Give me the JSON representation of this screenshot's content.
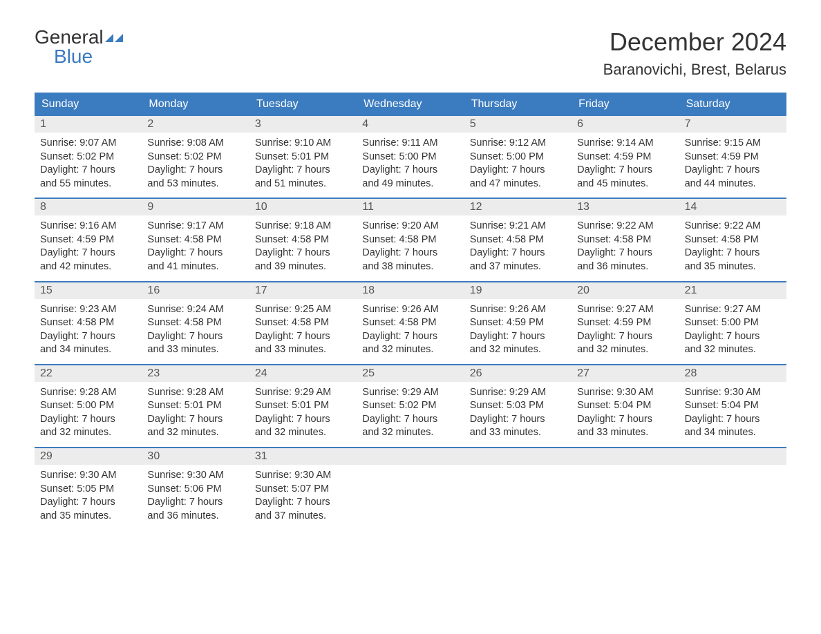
{
  "logo": {
    "text_general": "General",
    "text_blue": "Blue",
    "icon_color": "#3b7bbf"
  },
  "title": "December 2024",
  "location": "Baranovichi, Brest, Belarus",
  "colors": {
    "header_bg": "#3b7bbf",
    "header_text": "#ffffff",
    "date_bar_bg": "#ececec",
    "body_text": "#333333",
    "separator": "#3b7bbf"
  },
  "day_headers": [
    "Sunday",
    "Monday",
    "Tuesday",
    "Wednesday",
    "Thursday",
    "Friday",
    "Saturday"
  ],
  "weeks": [
    [
      {
        "date": "1",
        "sunrise": "Sunrise: 9:07 AM",
        "sunset": "Sunset: 5:02 PM",
        "daylight1": "Daylight: 7 hours",
        "daylight2": "and 55 minutes."
      },
      {
        "date": "2",
        "sunrise": "Sunrise: 9:08 AM",
        "sunset": "Sunset: 5:02 PM",
        "daylight1": "Daylight: 7 hours",
        "daylight2": "and 53 minutes."
      },
      {
        "date": "3",
        "sunrise": "Sunrise: 9:10 AM",
        "sunset": "Sunset: 5:01 PM",
        "daylight1": "Daylight: 7 hours",
        "daylight2": "and 51 minutes."
      },
      {
        "date": "4",
        "sunrise": "Sunrise: 9:11 AM",
        "sunset": "Sunset: 5:00 PM",
        "daylight1": "Daylight: 7 hours",
        "daylight2": "and 49 minutes."
      },
      {
        "date": "5",
        "sunrise": "Sunrise: 9:12 AM",
        "sunset": "Sunset: 5:00 PM",
        "daylight1": "Daylight: 7 hours",
        "daylight2": "and 47 minutes."
      },
      {
        "date": "6",
        "sunrise": "Sunrise: 9:14 AM",
        "sunset": "Sunset: 4:59 PM",
        "daylight1": "Daylight: 7 hours",
        "daylight2": "and 45 minutes."
      },
      {
        "date": "7",
        "sunrise": "Sunrise: 9:15 AM",
        "sunset": "Sunset: 4:59 PM",
        "daylight1": "Daylight: 7 hours",
        "daylight2": "and 44 minutes."
      }
    ],
    [
      {
        "date": "8",
        "sunrise": "Sunrise: 9:16 AM",
        "sunset": "Sunset: 4:59 PM",
        "daylight1": "Daylight: 7 hours",
        "daylight2": "and 42 minutes."
      },
      {
        "date": "9",
        "sunrise": "Sunrise: 9:17 AM",
        "sunset": "Sunset: 4:58 PM",
        "daylight1": "Daylight: 7 hours",
        "daylight2": "and 41 minutes."
      },
      {
        "date": "10",
        "sunrise": "Sunrise: 9:18 AM",
        "sunset": "Sunset: 4:58 PM",
        "daylight1": "Daylight: 7 hours",
        "daylight2": "and 39 minutes."
      },
      {
        "date": "11",
        "sunrise": "Sunrise: 9:20 AM",
        "sunset": "Sunset: 4:58 PM",
        "daylight1": "Daylight: 7 hours",
        "daylight2": "and 38 minutes."
      },
      {
        "date": "12",
        "sunrise": "Sunrise: 9:21 AM",
        "sunset": "Sunset: 4:58 PM",
        "daylight1": "Daylight: 7 hours",
        "daylight2": "and 37 minutes."
      },
      {
        "date": "13",
        "sunrise": "Sunrise: 9:22 AM",
        "sunset": "Sunset: 4:58 PM",
        "daylight1": "Daylight: 7 hours",
        "daylight2": "and 36 minutes."
      },
      {
        "date": "14",
        "sunrise": "Sunrise: 9:22 AM",
        "sunset": "Sunset: 4:58 PM",
        "daylight1": "Daylight: 7 hours",
        "daylight2": "and 35 minutes."
      }
    ],
    [
      {
        "date": "15",
        "sunrise": "Sunrise: 9:23 AM",
        "sunset": "Sunset: 4:58 PM",
        "daylight1": "Daylight: 7 hours",
        "daylight2": "and 34 minutes."
      },
      {
        "date": "16",
        "sunrise": "Sunrise: 9:24 AM",
        "sunset": "Sunset: 4:58 PM",
        "daylight1": "Daylight: 7 hours",
        "daylight2": "and 33 minutes."
      },
      {
        "date": "17",
        "sunrise": "Sunrise: 9:25 AM",
        "sunset": "Sunset: 4:58 PM",
        "daylight1": "Daylight: 7 hours",
        "daylight2": "and 33 minutes."
      },
      {
        "date": "18",
        "sunrise": "Sunrise: 9:26 AM",
        "sunset": "Sunset: 4:58 PM",
        "daylight1": "Daylight: 7 hours",
        "daylight2": "and 32 minutes."
      },
      {
        "date": "19",
        "sunrise": "Sunrise: 9:26 AM",
        "sunset": "Sunset: 4:59 PM",
        "daylight1": "Daylight: 7 hours",
        "daylight2": "and 32 minutes."
      },
      {
        "date": "20",
        "sunrise": "Sunrise: 9:27 AM",
        "sunset": "Sunset: 4:59 PM",
        "daylight1": "Daylight: 7 hours",
        "daylight2": "and 32 minutes."
      },
      {
        "date": "21",
        "sunrise": "Sunrise: 9:27 AM",
        "sunset": "Sunset: 5:00 PM",
        "daylight1": "Daylight: 7 hours",
        "daylight2": "and 32 minutes."
      }
    ],
    [
      {
        "date": "22",
        "sunrise": "Sunrise: 9:28 AM",
        "sunset": "Sunset: 5:00 PM",
        "daylight1": "Daylight: 7 hours",
        "daylight2": "and 32 minutes."
      },
      {
        "date": "23",
        "sunrise": "Sunrise: 9:28 AM",
        "sunset": "Sunset: 5:01 PM",
        "daylight1": "Daylight: 7 hours",
        "daylight2": "and 32 minutes."
      },
      {
        "date": "24",
        "sunrise": "Sunrise: 9:29 AM",
        "sunset": "Sunset: 5:01 PM",
        "daylight1": "Daylight: 7 hours",
        "daylight2": "and 32 minutes."
      },
      {
        "date": "25",
        "sunrise": "Sunrise: 9:29 AM",
        "sunset": "Sunset: 5:02 PM",
        "daylight1": "Daylight: 7 hours",
        "daylight2": "and 32 minutes."
      },
      {
        "date": "26",
        "sunrise": "Sunrise: 9:29 AM",
        "sunset": "Sunset: 5:03 PM",
        "daylight1": "Daylight: 7 hours",
        "daylight2": "and 33 minutes."
      },
      {
        "date": "27",
        "sunrise": "Sunrise: 9:30 AM",
        "sunset": "Sunset: 5:04 PM",
        "daylight1": "Daylight: 7 hours",
        "daylight2": "and 33 minutes."
      },
      {
        "date": "28",
        "sunrise": "Sunrise: 9:30 AM",
        "sunset": "Sunset: 5:04 PM",
        "daylight1": "Daylight: 7 hours",
        "daylight2": "and 34 minutes."
      }
    ],
    [
      {
        "date": "29",
        "sunrise": "Sunrise: 9:30 AM",
        "sunset": "Sunset: 5:05 PM",
        "daylight1": "Daylight: 7 hours",
        "daylight2": "and 35 minutes."
      },
      {
        "date": "30",
        "sunrise": "Sunrise: 9:30 AM",
        "sunset": "Sunset: 5:06 PM",
        "daylight1": "Daylight: 7 hours",
        "daylight2": "and 36 minutes."
      },
      {
        "date": "31",
        "sunrise": "Sunrise: 9:30 AM",
        "sunset": "Sunset: 5:07 PM",
        "daylight1": "Daylight: 7 hours",
        "daylight2": "and 37 minutes."
      },
      null,
      null,
      null,
      null
    ]
  ]
}
